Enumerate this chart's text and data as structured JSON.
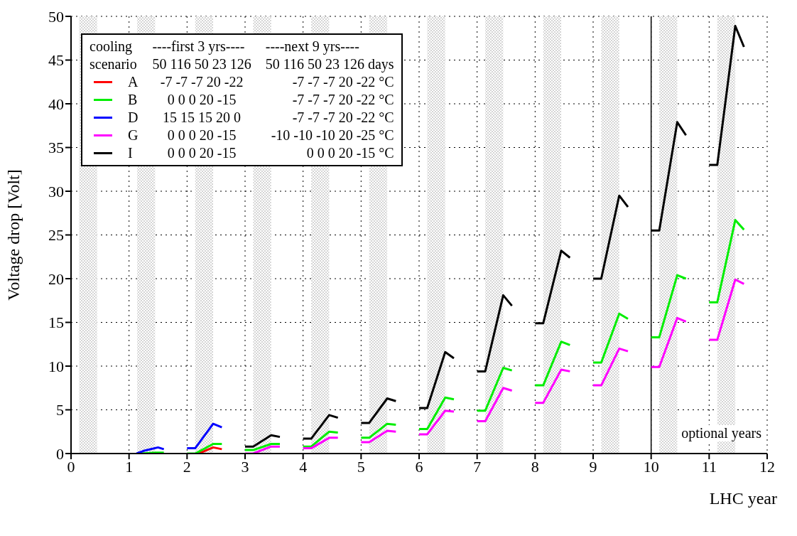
{
  "chart_data": {
    "type": "line",
    "xlabel": "LHC year",
    "ylabel": "Voltage drop [Volt]",
    "xlim": [
      0,
      12
    ],
    "xticks": [
      0,
      1,
      2,
      3,
      4,
      5,
      6,
      7,
      8,
      9,
      10,
      11,
      12
    ],
    "ylim": [
      0,
      50
    ],
    "yticks": [
      0,
      5,
      10,
      15,
      20,
      25,
      30,
      35,
      40,
      45,
      50
    ],
    "grid": true,
    "legend": "top left",
    "series": [
      {
        "name": "A",
        "color": "#ff0000",
        "x": [
          2.2,
          2.45,
          2.6
        ],
        "values": [
          0,
          0.7,
          0.5
        ]
      },
      {
        "name": "B",
        "color": "#00ee00",
        "x": [
          1.2,
          1.45,
          1.6,
          1.8,
          2,
          2.14,
          2.45,
          2.6,
          2.8,
          3,
          3.14,
          3.45,
          3.6,
          3.8,
          4,
          4.14,
          4.45,
          4.6,
          4.8,
          5,
          5.14,
          5.45,
          5.6,
          5.8,
          6,
          6.14,
          6.45,
          6.6,
          6.8,
          7,
          7.14,
          7.45,
          7.6,
          7.8,
          8,
          8.14,
          8.45,
          8.6,
          8.8,
          9,
          9.14,
          9.45,
          9.6,
          9.8,
          10,
          10.14,
          10.45,
          10.6,
          10.8,
          11,
          11.14,
          11.45,
          11.6
        ],
        "values": [
          0,
          0.1,
          0.1,
          null,
          0,
          0,
          1.1,
          1.1,
          null,
          0.4,
          0.4,
          1.1,
          1.1,
          null,
          0.8,
          0.8,
          2.5,
          2.4,
          null,
          1.8,
          1.8,
          3.4,
          3.3,
          null,
          2.8,
          2.8,
          6.4,
          6.2,
          null,
          4.9,
          4.9,
          9.8,
          9.5,
          null,
          7.8,
          7.8,
          12.8,
          12.4,
          null,
          10.4,
          10.4,
          16.0,
          15.4,
          null,
          13.3,
          13.3,
          20.4,
          20.0,
          null,
          17.3,
          17.3,
          26.7,
          25.6
        ]
      },
      {
        "name": "D",
        "color": "#0000ff",
        "x": [
          1.13,
          1.25,
          1.5,
          1.6,
          1.8,
          2,
          2.14,
          2.45,
          2.6
        ],
        "values": [
          0,
          0.3,
          0.7,
          0.5,
          null,
          0.6,
          0.6,
          3.4,
          3.0
        ]
      },
      {
        "name": "G",
        "color": "#ff00ff",
        "x": [
          3,
          3.14,
          3.45,
          3.6,
          3.8,
          4,
          4.14,
          4.45,
          4.6,
          4.8,
          5,
          5.14,
          5.45,
          5.6,
          5.8,
          6,
          6.14,
          6.45,
          6.6,
          6.8,
          7,
          7.14,
          7.45,
          7.6,
          7.8,
          8,
          8.14,
          8.45,
          8.6,
          8.8,
          9,
          9.14,
          9.45,
          9.6,
          9.8,
          10,
          10.14,
          10.45,
          10.6,
          10.8,
          11,
          11.14,
          11.45,
          11.6
        ],
        "values": [
          0,
          0,
          0.8,
          0.8,
          null,
          0.6,
          0.6,
          1.8,
          1.8,
          null,
          1.3,
          1.3,
          2.6,
          2.5,
          null,
          2.2,
          2.2,
          4.9,
          4.8,
          null,
          3.7,
          3.7,
          7.5,
          7.2,
          null,
          5.8,
          5.8,
          9.6,
          9.4,
          null,
          7.8,
          7.8,
          12.0,
          11.7,
          null,
          9.9,
          9.9,
          15.5,
          15.1,
          null,
          13.0,
          13.0,
          19.9,
          19.4
        ]
      },
      {
        "name": "I",
        "color": "#000000",
        "x": [
          3,
          3.14,
          3.45,
          3.6,
          3.8,
          4,
          4.14,
          4.45,
          4.6,
          4.8,
          5,
          5.14,
          5.45,
          5.6,
          5.8,
          6,
          6.14,
          6.45,
          6.6,
          6.8,
          7,
          7.14,
          7.45,
          7.6,
          7.8,
          8,
          8.14,
          8.45,
          8.6,
          8.8,
          9,
          9.14,
          9.45,
          9.6,
          9.8,
          10,
          10.14,
          10.45,
          10.6,
          10.8,
          11,
          11.14,
          11.45,
          11.6
        ],
        "values": [
          0.8,
          0.8,
          2.1,
          1.9,
          null,
          1.7,
          1.7,
          4.4,
          4.1,
          null,
          3.5,
          3.5,
          6.3,
          6.0,
          null,
          5.2,
          5.2,
          11.6,
          10.9,
          null,
          9.4,
          9.4,
          18.1,
          16.9,
          null,
          14.9,
          14.9,
          23.2,
          22.4,
          null,
          20.0,
          20.0,
          29.5,
          28.2,
          null,
          25.5,
          25.5,
          37.9,
          36.4,
          null,
          33.0,
          33.0,
          48.9,
          46.5
        ]
      }
    ],
    "bands": [
      {
        "axis": "x",
        "from": 0.14,
        "to": 0.45,
        "color": "#a0a0a0"
      },
      {
        "axis": "x",
        "from": 1.14,
        "to": 1.45,
        "color": "#a0a0a0"
      },
      {
        "axis": "x",
        "from": 2.14,
        "to": 2.45,
        "color": "#a0a0a0"
      },
      {
        "axis": "x",
        "from": 3.14,
        "to": 3.45,
        "color": "#a0a0a0"
      },
      {
        "axis": "x",
        "from": 4.14,
        "to": 4.45,
        "color": "#a0a0a0"
      },
      {
        "axis": "x",
        "from": 5.14,
        "to": 5.45,
        "color": "#a0a0a0"
      },
      {
        "axis": "x",
        "from": 6.14,
        "to": 6.45,
        "color": "#a0a0a0"
      },
      {
        "axis": "x",
        "from": 7.14,
        "to": 7.45,
        "color": "#a0a0a0"
      },
      {
        "axis": "x",
        "from": 8.14,
        "to": 8.45,
        "color": "#a0a0a0"
      },
      {
        "axis": "x",
        "from": 9.14,
        "to": 9.45,
        "color": "#a0a0a0"
      },
      {
        "axis": "x",
        "from": 10.14,
        "to": 10.45,
        "color": "#a0a0a0"
      },
      {
        "axis": "x",
        "from": 11.14,
        "to": 11.45,
        "color": "#a0a0a0"
      }
    ],
    "ref_lines": [
      {
        "axis": "x",
        "value": 10,
        "color": "#000000"
      }
    ],
    "annotations": [
      "cooling",
      "----first 3 yrs----",
      "----next 9 yrs----",
      "scenario",
      "50 116 50 23 126",
      "50 116 50 23 126 days",
      "-7 -7 -7 20 -22",
      "-7 -7 -7 20 -22 °C",
      "0 0 0 20 -15",
      "-7 -7 -7 20 -22 °C",
      "15 15 15 20 0",
      "-7 -7 -7 20 -22 °C",
      "0 0 0 20 -15",
      "-10 -10 -10 20 -25 °C",
      "0 0 0 20 -15",
      "0 0 0 20 -15 °C",
      "optional years"
    ]
  }
}
